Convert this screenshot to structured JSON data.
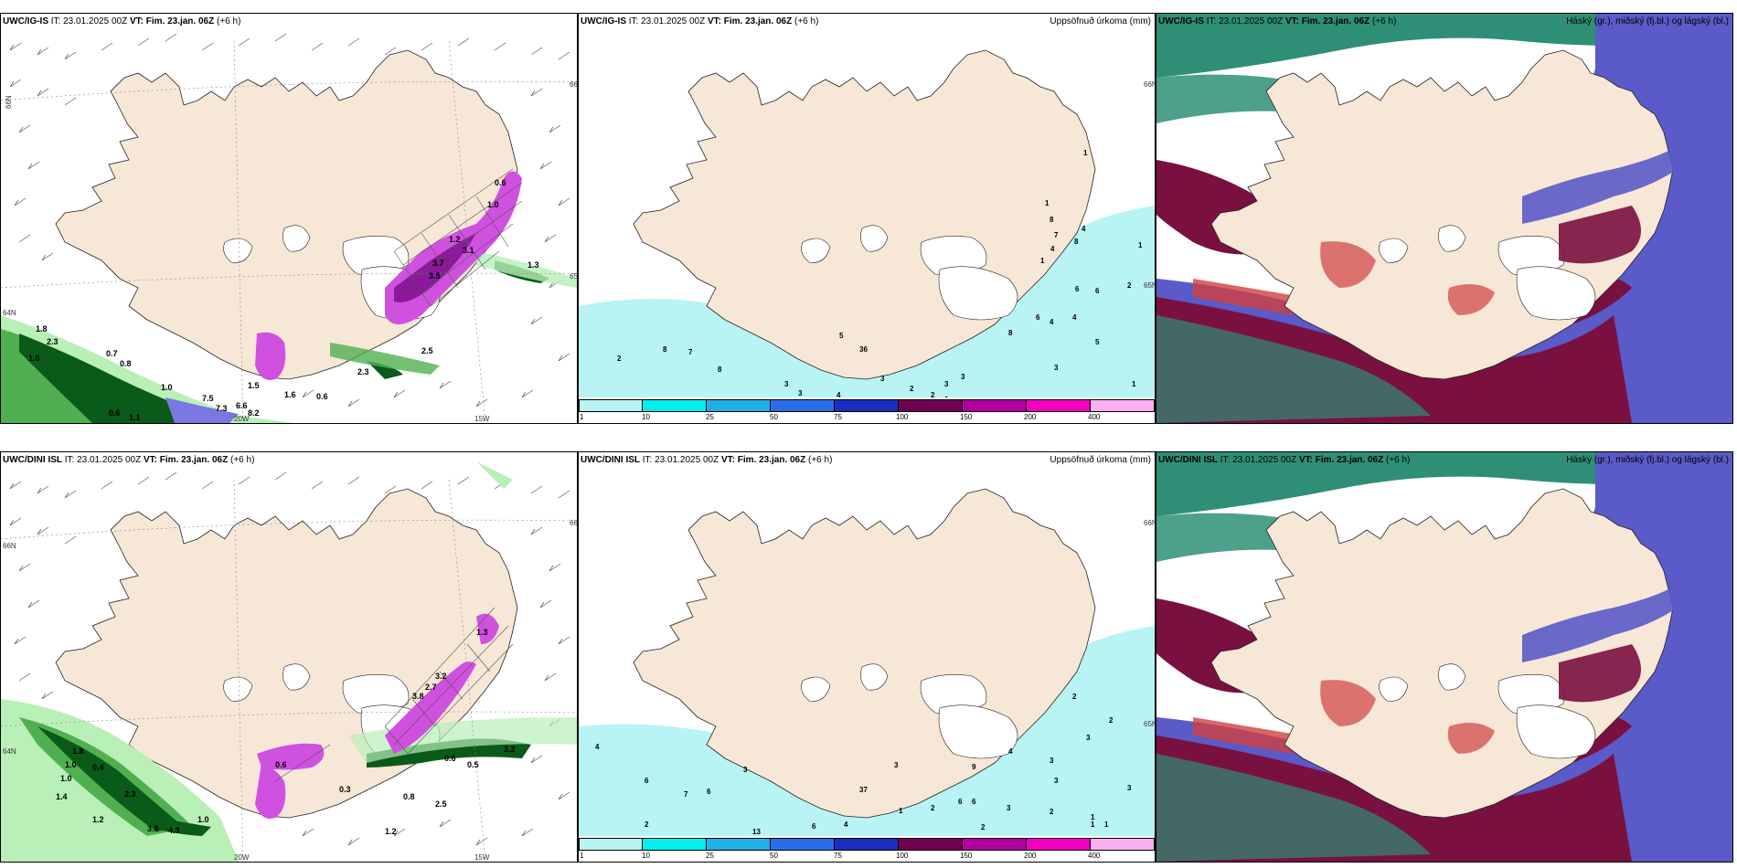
{
  "panels": [
    {
      "id": "r1c1",
      "title_bold": "UWC/IG-IS",
      "title_it": " IT: 23.01.2025 00Z ",
      "title_vt": "VT: Fim. 23.jan. 06Z",
      "title_lead": " (+6 h)",
      "right_label": "",
      "coords": [
        "66N",
        "66N",
        "65N",
        "64N",
        "20W",
        "15W"
      ],
      "values": [
        "0.6",
        "1.0",
        "1.2",
        "3.1",
        "3.7",
        "3.5",
        "1.3",
        "1.8",
        "2.3",
        "1.0",
        "0.7",
        "0.8",
        "1.0",
        "1.5",
        "7.5",
        "7.3",
        "6.6",
        "8.2",
        "1.6",
        "0.6",
        "0.6",
        "1.1",
        "2.3",
        "2.5"
      ]
    },
    {
      "id": "r1c2",
      "title_bold": "UWC/IG-IS",
      "title_it": " IT: 23.01.2025 00Z ",
      "title_vt": "VT: Fim. 23.jan. 06Z",
      "title_lead": " (+6 h)",
      "right_label": "Uppsöfnuð úrkoma (mm)",
      "coords": [
        "66N",
        "65N"
      ],
      "values": [
        "2",
        "8",
        "7",
        "8",
        "3",
        "3",
        "4",
        "5",
        "36",
        "3",
        "2",
        "2",
        "3",
        "3",
        "2",
        "8",
        "6",
        "4",
        "4",
        "3",
        "1",
        "4",
        "8",
        "7",
        "6",
        "8",
        "4",
        "1",
        "1",
        "6",
        "5",
        "2",
        "1",
        "1"
      ],
      "colorbar": [
        "1",
        "10",
        "25",
        "50",
        "75",
        "100",
        "150",
        "200",
        "400"
      ]
    },
    {
      "id": "r1c3",
      "title_bold": "UWC/IG-IS",
      "title_it": " IT: 23.01.2025 00Z ",
      "title_vt": "VT: Fim. 23.jan. 06Z",
      "title_lead": " (+6 h)",
      "right_label": "Háský (gr.), miðský (fj.bl.) og lágský (bl.)"
    },
    {
      "id": "r2c1",
      "title_bold": "UWC/DINI ISL",
      "title_it": " IT: 23.01.2025 00Z ",
      "title_vt": "VT: Fim. 23.jan. 06Z",
      "title_lead": " (+6 h)",
      "right_label": "",
      "coords": [
        "66N",
        "66N",
        "64N",
        "20W",
        "15W"
      ],
      "values": [
        "1.3",
        "3.2",
        "2.7",
        "3.8",
        "0.6",
        "0.5",
        "2.2",
        "0.8",
        "2.5",
        "1.0",
        "0.4",
        "1.8",
        "1.0",
        "2.3",
        "1.2",
        "3.8",
        "4.3",
        "1.0",
        "1.2",
        "1.4",
        "0.6",
        "0.3"
      ]
    },
    {
      "id": "r2c2",
      "title_bold": "UWC/DINI ISL",
      "title_it": " IT: 23.01.2025 00Z ",
      "title_vt": "VT: Fim. 23.jan. 06Z",
      "title_lead": " (+6 h)",
      "right_label": "Uppsöfnuð úrkoma (mm)",
      "coords": [
        "66N",
        "65N"
      ],
      "values": [
        "4",
        "6",
        "7",
        "6",
        "2",
        "3",
        "37",
        "3",
        "1",
        "13",
        "6",
        "4",
        "2",
        "9",
        "6",
        "6",
        "2",
        "3",
        "4",
        "3",
        "2",
        "3",
        "1",
        "2",
        "3",
        "1",
        "1",
        "3",
        "2"
      ],
      "colorbar": [
        "1",
        "10",
        "25",
        "50",
        "75",
        "100",
        "150",
        "200",
        "400"
      ]
    },
    {
      "id": "r2c3",
      "title_bold": "UWC/DINI ISL",
      "title_it": " IT: 23.01.2025 00Z ",
      "title_vt": "VT: Fim. 23.jan. 06Z",
      "title_lead": " (+6 h)",
      "right_label": "Háský (gr.), miðský (fj.bl.) og lágský (bl.)"
    }
  ],
  "colors": {
    "land": "#f7e7d6",
    "precip_light": "#b8f4f4",
    "precip_cyan": "#00f0f0",
    "precip_blue": "#20b0e8",
    "precip_mid": "#2a6de8",
    "precip_dark": "#1a2fc0",
    "precip_maroon": "#700050",
    "precip_purple": "#b000a0",
    "precip_magenta": "#f000c0",
    "precip_pink": "#f8b0f0",
    "green_light": "#b8f0b8",
    "green_mid": "#50b050",
    "green_dark": "#0a5a1a",
    "magenta_precip": "#d050e0",
    "cloud_high": "#2e8f76",
    "cloud_mid": "#5a5ac8",
    "cloud_low": "#7a1040",
    "cloud_red": "#d04040"
  }
}
